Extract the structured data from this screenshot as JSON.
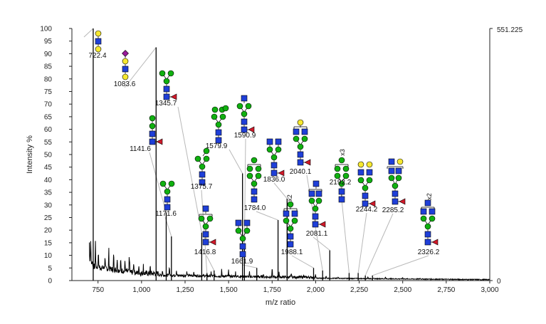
{
  "chart_data": {
    "type": "line",
    "xlabel": "m/z ratio",
    "ylabel": "Intensity %",
    "xlim": [
      600,
      3000
    ],
    "ylim": [
      0,
      100
    ],
    "x_ticks": [
      "750",
      "1,000",
      "1,250",
      "1,500",
      "1,750",
      "2,000",
      "2,250",
      "2,500",
      "2,750",
      "3,000"
    ],
    "x_tick_values": [
      750,
      1000,
      1250,
      1500,
      1750,
      2000,
      2250,
      2500,
      2750,
      3000
    ],
    "y_ticks": [
      "0",
      "5",
      "10",
      "15",
      "20",
      "25",
      "30",
      "35",
      "40",
      "45",
      "50",
      "55",
      "60",
      "65",
      "70",
      "75",
      "80",
      "85",
      "90",
      "95",
      "100"
    ],
    "right_axis_top": "551.225",
    "right_axis_bottom": "0",
    "peaks": [
      {
        "mz": 722.4,
        "label": "722.4",
        "intensity": 100,
        "glycan": "G1"
      },
      {
        "mz": 1083.6,
        "label": "1083.6",
        "intensity": 92.5,
        "glycan": "G2"
      },
      {
        "mz": 1141.6,
        "label": "1141.6",
        "intensity": 27,
        "glycan": "G3"
      },
      {
        "mz": 1171.6,
        "label": "1171.6",
        "intensity": 17.5,
        "glycan": "G4"
      },
      {
        "mz": 1345.7,
        "label": "1345.7",
        "intensity": 19,
        "glycan": "G5"
      },
      {
        "mz": 1375.7,
        "label": "1375.7",
        "intensity": 3,
        "glycan": "G6"
      },
      {
        "mz": 1416.8,
        "label": "1416.8",
        "intensity": 4,
        "glycan": "G7"
      },
      {
        "mz": 1579.9,
        "label": "1579.9",
        "intensity": 42.5,
        "glycan": "G8"
      },
      {
        "mz": 1590.9,
        "label": "1590.9",
        "intensity": 14,
        "glycan": "G9"
      },
      {
        "mz": 1661.9,
        "label": "1661.9",
        "intensity": 5,
        "glycan": "G10"
      },
      {
        "mz": 1784.0,
        "label": "1784.0",
        "intensity": 24,
        "glycan": "G11"
      },
      {
        "mz": 1836.0,
        "label": "1836.0",
        "intensity": 32.5,
        "glycan": "G12"
      },
      {
        "mz": 1988.1,
        "label": "1988.1",
        "intensity": 5,
        "glycan": "G13"
      },
      {
        "mz": 2040.1,
        "label": "2040.1",
        "intensity": 4,
        "glycan": "G14"
      },
      {
        "mz": 2081.1,
        "label": "2081.1",
        "intensity": 12,
        "glycan": "G15"
      },
      {
        "mz": 2192.2,
        "label": "2192.2",
        "intensity": 3,
        "glycan": "G16"
      },
      {
        "mz": 2244.2,
        "label": "2244.2",
        "intensity": 3,
        "glycan": "G17"
      },
      {
        "mz": 2285.2,
        "label": "2285.2",
        "intensity": 2,
        "glycan": "G18"
      },
      {
        "mz": 2326.2,
        "label": "2326.2",
        "intensity": 2,
        "glycan": "G19"
      }
    ],
    "glycan_notes": {
      "G13": "x2",
      "G16": "x3",
      "G19": "x2"
    },
    "colors": {
      "glcnac_square": "#1f3fd8",
      "mannose_circle": "#10b010",
      "galactose_circle": "#f6e830",
      "fucose_triangle": "#d11a2a",
      "sialic_diamond": "#9a1a9a",
      "trace": "#000000"
    }
  }
}
